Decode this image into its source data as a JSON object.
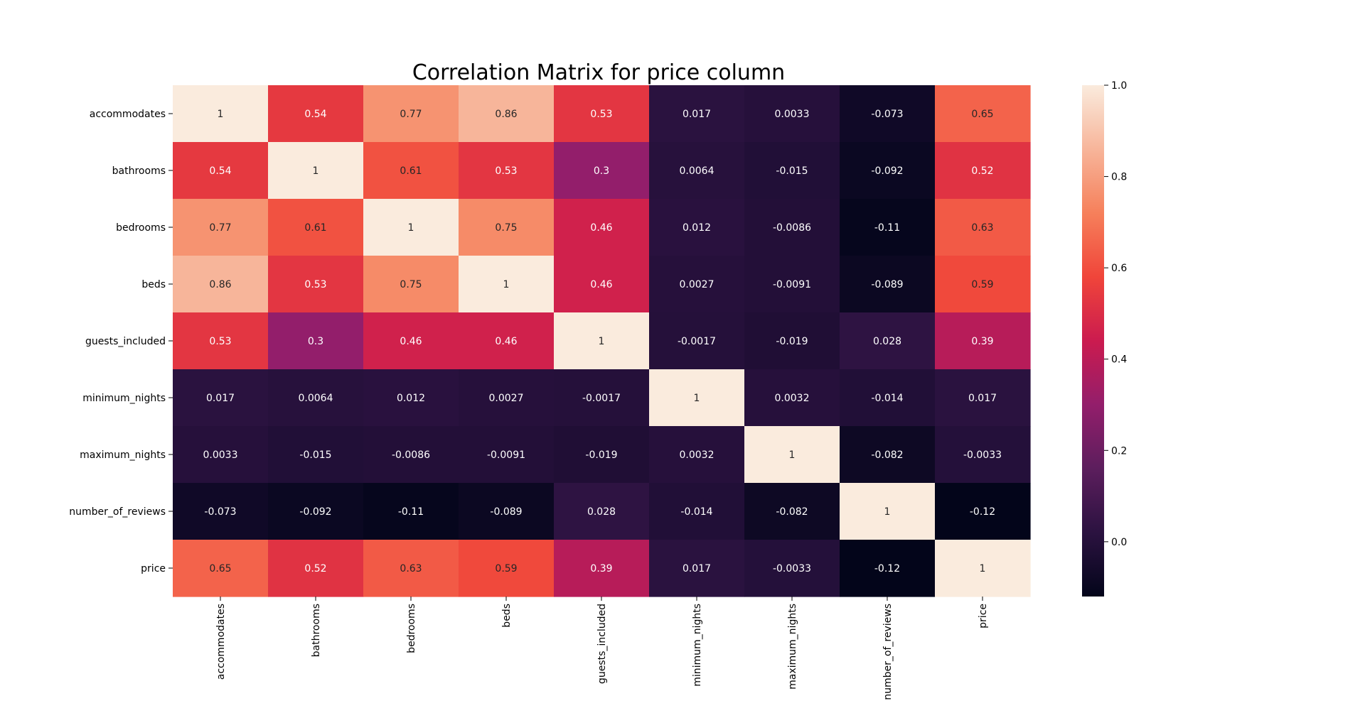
{
  "chart_data": {
    "type": "heatmap",
    "title": "Correlation Matrix for price column",
    "xlabel": "",
    "ylabel": "",
    "row_labels": [
      "accommodates",
      "bathrooms",
      "bedrooms",
      "beds",
      "guests_included",
      "minimum_nights",
      "maximum_nights",
      "number_of_reviews",
      "price"
    ],
    "col_labels": [
      "accommodates",
      "bathrooms",
      "bedrooms",
      "beds",
      "guests_included",
      "minimum_nights",
      "maximum_nights",
      "number_of_reviews",
      "price"
    ],
    "values": [
      [
        1,
        0.54,
        0.77,
        0.86,
        0.53,
        0.017,
        0.0033,
        -0.073,
        0.65
      ],
      [
        0.54,
        1,
        0.61,
        0.53,
        0.3,
        0.0064,
        -0.015,
        -0.092,
        0.52
      ],
      [
        0.77,
        0.61,
        1,
        0.75,
        0.46,
        0.012,
        -0.0086,
        -0.11,
        0.63
      ],
      [
        0.86,
        0.53,
        0.75,
        1,
        0.46,
        0.0027,
        -0.0091,
        -0.089,
        0.59
      ],
      [
        0.53,
        0.3,
        0.46,
        0.46,
        1,
        -0.0017,
        -0.019,
        0.028,
        0.39
      ],
      [
        0.017,
        0.0064,
        0.012,
        0.0027,
        -0.0017,
        1,
        0.0032,
        -0.014,
        0.017
      ],
      [
        0.0033,
        -0.015,
        -0.0086,
        -0.0091,
        -0.019,
        0.0032,
        1,
        -0.082,
        -0.0033
      ],
      [
        -0.073,
        -0.092,
        -0.11,
        -0.089,
        0.028,
        -0.014,
        -0.082,
        1,
        -0.12
      ],
      [
        0.65,
        0.52,
        0.63,
        0.59,
        0.39,
        0.017,
        -0.0033,
        -0.12,
        1
      ]
    ],
    "annotations": [
      [
        "1",
        "0.54",
        "0.77",
        "0.86",
        "0.53",
        "0.017",
        "0.0033",
        "-0.073",
        "0.65"
      ],
      [
        "0.54",
        "1",
        "0.61",
        "0.53",
        "0.3",
        "0.0064",
        "-0.015",
        "-0.092",
        "0.52"
      ],
      [
        "0.77",
        "0.61",
        "1",
        "0.75",
        "0.46",
        "0.012",
        "-0.0086",
        "-0.11",
        "0.63"
      ],
      [
        "0.86",
        "0.53",
        "0.75",
        "1",
        "0.46",
        "0.0027",
        "-0.0091",
        "-0.089",
        "0.59"
      ],
      [
        "0.53",
        "0.3",
        "0.46",
        "0.46",
        "1",
        "-0.0017",
        "-0.019",
        "0.028",
        "0.39"
      ],
      [
        "0.017",
        "0.0064",
        "0.012",
        "0.0027",
        "-0.0017",
        "1",
        "0.0032",
        "-0.014",
        "0.017"
      ],
      [
        "0.0033",
        "-0.015",
        "-0.0086",
        "-0.0091",
        "-0.019",
        "0.0032",
        "1",
        "-0.082",
        "-0.0033"
      ],
      [
        "-0.073",
        "-0.092",
        "-0.11",
        "-0.089",
        "0.028",
        "-0.014",
        "-0.082",
        "1",
        "-0.12"
      ],
      [
        "0.65",
        "0.52",
        "0.63",
        "0.59",
        "0.39",
        "0.017",
        "-0.0033",
        "-0.12",
        "1"
      ]
    ],
    "colorbar": {
      "vmin": -0.12,
      "vmax": 1,
      "ticks": [
        0.0,
        0.2,
        0.4,
        0.6,
        0.8,
        1.0
      ],
      "tick_labels": [
        "0.0",
        "0.2",
        "0.4",
        "0.6",
        "0.8",
        "1.0"
      ],
      "colormap": "rocket",
      "colormap_stops": [
        "#03051a",
        "#2b1240",
        "#5c1e5d",
        "#931e6b",
        "#cb1b4f",
        "#f0453a",
        "#f6805b",
        "#f7b59a",
        "#faebdd"
      ]
    },
    "annotation_colors": {
      "on_dark": "#ffffff",
      "on_light": "#262626"
    },
    "text_color": "#000000",
    "grid": false
  }
}
